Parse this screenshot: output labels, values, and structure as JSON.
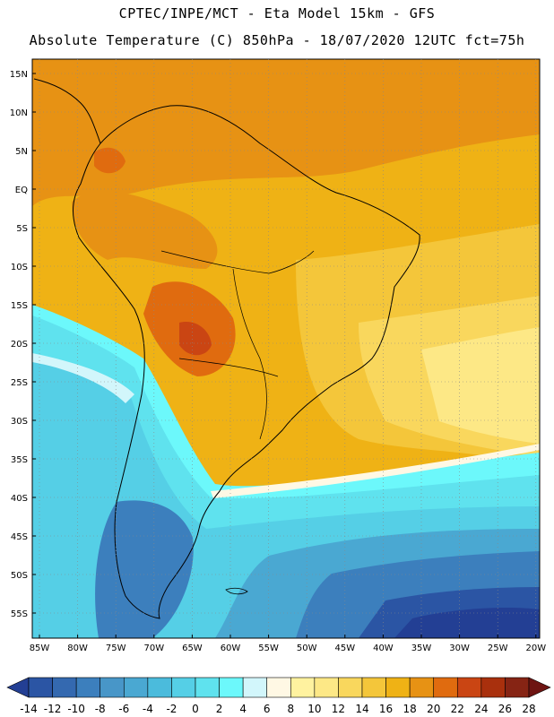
{
  "header": {
    "title": "CPTEC/INPE/MCT -  Eta Model 15km - GFS",
    "subtitle": "Absolute Temperature (C) 850hPa - 18/07/2020 12UTC fct=75h"
  },
  "map": {
    "variable": "Absolute Temperature",
    "units": "C",
    "level": "850hPa",
    "lat_labels": [
      "15N",
      "10N",
      "5N",
      "EQ",
      "5S",
      "10S",
      "15S",
      "20S",
      "25S",
      "30S",
      "35S",
      "40S",
      "45S",
      "50S",
      "55S"
    ],
    "lon_labels": [
      "85W",
      "80W",
      "75W",
      "70W",
      "65W",
      "60W",
      "55W",
      "50W",
      "45W",
      "40W",
      "35W",
      "30W",
      "25W",
      "20W"
    ],
    "grid": "dotted",
    "graticule_lines": "dotted gray"
  },
  "colorbar": {
    "ticks": [
      "-14",
      "-12",
      "-10",
      "-8",
      "-6",
      "-4",
      "-2",
      "0",
      "2",
      "4",
      "6",
      "8",
      "10",
      "12",
      "14",
      "16",
      "18",
      "20",
      "22",
      "24",
      "26",
      "28"
    ],
    "colors": [
      "#233f94",
      "#2b55a4",
      "#3469b0",
      "#3c7fbd",
      "#4896c8",
      "#4aa8d2",
      "#4bbbdc",
      "#55cfe6",
      "#5fe2ee",
      "#6cf8fb",
      "#d2f6fb",
      "#fff8e4",
      "#fff29f",
      "#fde886",
      "#f9d75d",
      "#f4c63a",
      "#efb215",
      "#e79214",
      "#e06b0f",
      "#ca4513",
      "#a9300d",
      "#862414",
      "#6e1412"
    ]
  },
  "colors": {
    "coastline": "#000000",
    "warm_fill": "#efb215",
    "cold_fill": "#4bbbdc"
  }
}
